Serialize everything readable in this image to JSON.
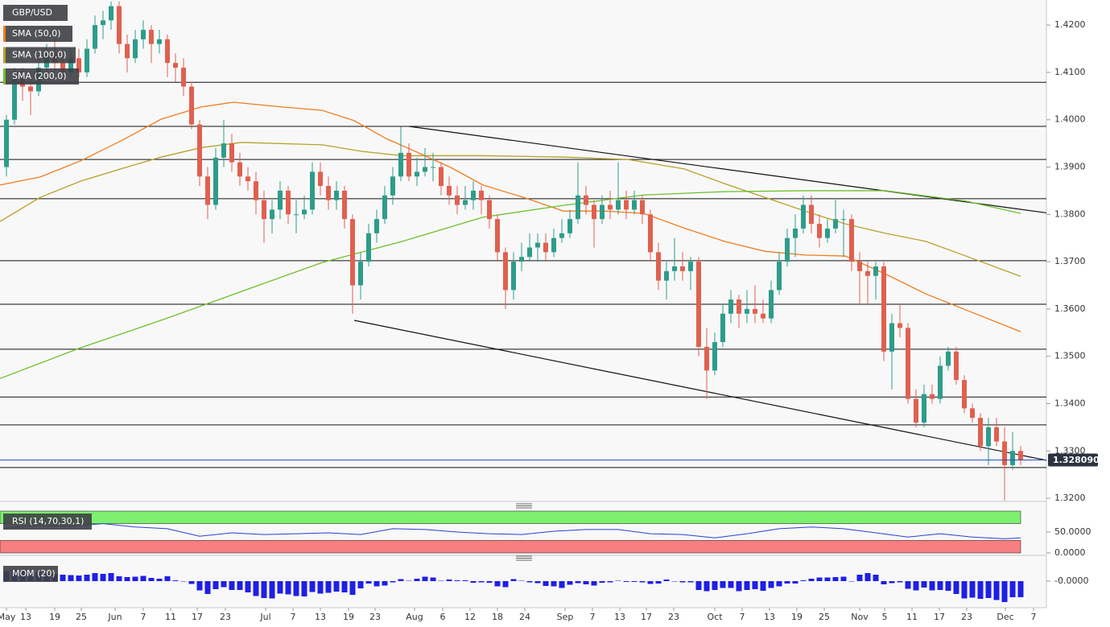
{
  "chart_data": {
    "type": "candlestick",
    "title": "GBP/USD",
    "up_color": "#2e9c8a",
    "down_color": "#e0604f",
    "xlim": [
      -0.8,
      129.2
    ],
    "xticks": [
      {
        "value": 0,
        "label": "May"
      },
      {
        "value": 2.4,
        "label": "13"
      },
      {
        "value": 6,
        "label": "19"
      },
      {
        "value": 9.3,
        "label": "25"
      },
      {
        "value": 13.5,
        "label": "Jun"
      },
      {
        "value": 17,
        "label": "7"
      },
      {
        "value": 20.4,
        "label": "11"
      },
      {
        "value": 23.7,
        "label": "17"
      },
      {
        "value": 27.2,
        "label": "23"
      },
      {
        "value": 32.2,
        "label": "Jul"
      },
      {
        "value": 35.6,
        "label": "7"
      },
      {
        "value": 39,
        "label": "13"
      },
      {
        "value": 42.5,
        "label": "19"
      },
      {
        "value": 45.8,
        "label": "23"
      },
      {
        "value": 50.7,
        "label": "Aug"
      },
      {
        "value": 54.2,
        "label": "6"
      },
      {
        "value": 57.6,
        "label": "12"
      },
      {
        "value": 61,
        "label": "18"
      },
      {
        "value": 64.4,
        "label": "24"
      },
      {
        "value": 69.4,
        "label": "Sep"
      },
      {
        "value": 72.8,
        "label": "7"
      },
      {
        "value": 76.2,
        "label": "13"
      },
      {
        "value": 79.5,
        "label": "17"
      },
      {
        "value": 82.9,
        "label": "23"
      },
      {
        "value": 88,
        "label": "Oct"
      },
      {
        "value": 91.4,
        "label": "7"
      },
      {
        "value": 94.8,
        "label": "13"
      },
      {
        "value": 98.2,
        "label": "19"
      },
      {
        "value": 101.6,
        "label": "25"
      },
      {
        "value": 106,
        "label": "Nov"
      },
      {
        "value": 109.1,
        "label": "5"
      },
      {
        "value": 112.5,
        "label": "11"
      },
      {
        "value": 115.9,
        "label": "17"
      },
      {
        "value": 119.3,
        "label": "23"
      },
      {
        "value": 124.1,
        "label": "Dec"
      },
      {
        "value": 127.6,
        "label": "7"
      }
    ],
    "ylim": [
      1.3195,
      1.4253
    ],
    "yticks": [
      {
        "value": 1.42,
        "label": "1.4200"
      },
      {
        "value": 1.41,
        "label": "1.4100"
      },
      {
        "value": 1.4,
        "label": "1.4000"
      },
      {
        "value": 1.39,
        "label": "1.3900"
      },
      {
        "value": 1.38,
        "label": "1.3800"
      },
      {
        "value": 1.37,
        "label": "1.3700"
      },
      {
        "value": 1.36,
        "label": "1.3600"
      },
      {
        "value": 1.35,
        "label": "1.3500"
      },
      {
        "value": 1.34,
        "label": "1.3400"
      },
      {
        "value": 1.33,
        "label": "1.3300"
      },
      {
        "value": 1.32,
        "label": "1.3200"
      }
    ],
    "ohlc": [
      [
        1.39,
        1.401,
        1.388,
        1.4
      ],
      [
        1.4,
        1.411,
        1.399,
        1.409
      ],
      [
        1.409,
        1.411,
        1.404,
        1.407
      ],
      [
        1.407,
        1.409,
        1.401,
        1.406
      ],
      [
        1.406,
        1.413,
        1.405,
        1.411
      ],
      [
        1.411,
        1.416,
        1.41,
        1.414
      ],
      [
        1.414,
        1.417,
        1.41,
        1.412
      ],
      [
        1.412,
        1.414,
        1.408,
        1.41
      ],
      [
        1.41,
        1.415,
        1.409,
        1.413
      ],
      [
        1.413,
        1.415,
        1.409,
        1.41
      ],
      [
        1.41,
        1.417,
        1.409,
        1.415
      ],
      [
        1.415,
        1.422,
        1.414,
        1.42
      ],
      [
        1.42,
        1.423,
        1.417,
        1.421
      ],
      [
        1.421,
        1.425,
        1.419,
        1.424
      ],
      [
        1.424,
        1.425,
        1.414,
        1.416
      ],
      [
        1.416,
        1.418,
        1.41,
        1.413
      ],
      [
        1.413,
        1.419,
        1.412,
        1.417
      ],
      [
        1.417,
        1.421,
        1.415,
        1.419
      ],
      [
        1.419,
        1.42,
        1.412,
        1.416
      ],
      [
        1.416,
        1.419,
        1.414,
        1.417
      ],
      [
        1.417,
        1.418,
        1.409,
        1.412
      ],
      [
        1.412,
        1.414,
        1.408,
        1.411
      ],
      [
        1.411,
        1.413,
        1.405,
        1.407
      ],
      [
        1.407,
        1.408,
        1.398,
        1.399
      ],
      [
        1.399,
        1.4,
        1.386,
        1.388
      ],
      [
        1.388,
        1.39,
        1.379,
        1.382
      ],
      [
        1.382,
        1.394,
        1.381,
        1.392
      ],
      [
        1.392,
        1.4,
        1.39,
        1.395
      ],
      [
        1.395,
        1.397,
        1.389,
        1.391
      ],
      [
        1.391,
        1.393,
        1.386,
        1.388
      ],
      [
        1.388,
        1.39,
        1.385,
        1.387
      ],
      [
        1.387,
        1.389,
        1.38,
        1.383
      ],
      [
        1.383,
        1.385,
        1.374,
        1.379
      ],
      [
        1.379,
        1.383,
        1.376,
        1.381
      ],
      [
        1.381,
        1.387,
        1.379,
        1.385
      ],
      [
        1.385,
        1.386,
        1.378,
        1.38
      ],
      [
        1.38,
        1.383,
        1.376,
        1.38
      ],
      [
        1.38,
        1.384,
        1.379,
        1.381
      ],
      [
        1.381,
        1.391,
        1.38,
        1.389
      ],
      [
        1.389,
        1.391,
        1.384,
        1.386
      ],
      [
        1.386,
        1.388,
        1.381,
        1.383
      ],
      [
        1.383,
        1.387,
        1.381,
        1.385
      ],
      [
        1.385,
        1.386,
        1.377,
        1.379
      ],
      [
        1.379,
        1.38,
        1.359,
        1.365
      ],
      [
        1.365,
        1.372,
        1.362,
        1.37
      ],
      [
        1.37,
        1.378,
        1.369,
        1.376
      ],
      [
        1.376,
        1.381,
        1.374,
        1.379
      ],
      [
        1.379,
        1.386,
        1.378,
        1.384
      ],
      [
        1.384,
        1.39,
        1.382,
        1.388
      ],
      [
        1.388,
        1.3985,
        1.387,
        1.393
      ],
      [
        1.393,
        1.395,
        1.387,
        1.388
      ],
      [
        1.388,
        1.392,
        1.386,
        1.389
      ],
      [
        1.389,
        1.394,
        1.388,
        1.39
      ],
      [
        1.39,
        1.393,
        1.387,
        1.39
      ],
      [
        1.39,
        1.391,
        1.384,
        1.386
      ],
      [
        1.386,
        1.388,
        1.382,
        1.384
      ],
      [
        1.384,
        1.386,
        1.38,
        1.382
      ],
      [
        1.382,
        1.386,
        1.381,
        1.383
      ],
      [
        1.383,
        1.387,
        1.381,
        1.385
      ],
      [
        1.385,
        1.386,
        1.38,
        1.383
      ],
      [
        1.383,
        1.384,
        1.377,
        1.379
      ],
      [
        1.379,
        1.38,
        1.37,
        1.372
      ],
      [
        1.372,
        1.373,
        1.36,
        1.364
      ],
      [
        1.364,
        1.372,
        1.362,
        1.37
      ],
      [
        1.37,
        1.374,
        1.368,
        1.371
      ],
      [
        1.371,
        1.376,
        1.37,
        1.373
      ],
      [
        1.373,
        1.376,
        1.37,
        1.374
      ],
      [
        1.374,
        1.376,
        1.37,
        1.372
      ],
      [
        1.372,
        1.377,
        1.371,
        1.375
      ],
      [
        1.375,
        1.379,
        1.374,
        1.376
      ],
      [
        1.376,
        1.381,
        1.375,
        1.379
      ],
      [
        1.379,
        1.391,
        1.378,
        1.384
      ],
      [
        1.384,
        1.386,
        1.38,
        1.382
      ],
      [
        1.382,
        1.383,
        1.373,
        1.379
      ],
      [
        1.379,
        1.384,
        1.378,
        1.382
      ],
      [
        1.382,
        1.385,
        1.379,
        1.381
      ],
      [
        1.381,
        1.391,
        1.38,
        1.383
      ],
      [
        1.383,
        1.385,
        1.379,
        1.381
      ],
      [
        1.381,
        1.385,
        1.38,
        1.383
      ],
      [
        1.383,
        1.384,
        1.378,
        1.38
      ],
      [
        1.38,
        1.381,
        1.37,
        1.372
      ],
      [
        1.372,
        1.374,
        1.364,
        1.366
      ],
      [
        1.366,
        1.37,
        1.362,
        1.368
      ],
      [
        1.368,
        1.375,
        1.366,
        1.369
      ],
      [
        1.369,
        1.372,
        1.366,
        1.368
      ],
      [
        1.368,
        1.371,
        1.364,
        1.37
      ],
      [
        1.37,
        1.371,
        1.35,
        1.352
      ],
      [
        1.352,
        1.356,
        1.341,
        1.347
      ],
      [
        1.347,
        1.355,
        1.346,
        1.353
      ],
      [
        1.353,
        1.361,
        1.352,
        1.359
      ],
      [
        1.359,
        1.364,
        1.357,
        1.362
      ],
      [
        1.362,
        1.363,
        1.356,
        1.359
      ],
      [
        1.359,
        1.364,
        1.357,
        1.36
      ],
      [
        1.36,
        1.365,
        1.357,
        1.359
      ],
      [
        1.359,
        1.362,
        1.357,
        1.358
      ],
      [
        1.358,
        1.366,
        1.357,
        1.364
      ],
      [
        1.364,
        1.372,
        1.363,
        1.37
      ],
      [
        1.37,
        1.377,
        1.369,
        1.375
      ],
      [
        1.375,
        1.38,
        1.371,
        1.377
      ],
      [
        1.377,
        1.384,
        1.376,
        1.382
      ],
      [
        1.382,
        1.384,
        1.376,
        1.378
      ],
      [
        1.378,
        1.38,
        1.373,
        1.375
      ],
      [
        1.375,
        1.379,
        1.374,
        1.377
      ],
      [
        1.377,
        1.383,
        1.376,
        1.379
      ],
      [
        1.379,
        1.381,
        1.371,
        1.379
      ],
      [
        1.379,
        1.38,
        1.368,
        1.37
      ],
      [
        1.37,
        1.372,
        1.361,
        1.368
      ],
      [
        1.368,
        1.37,
        1.361,
        1.367
      ],
      [
        1.367,
        1.37,
        1.362,
        1.369
      ],
      [
        1.369,
        1.37,
        1.349,
        1.351
      ],
      [
        1.351,
        1.359,
        1.343,
        1.357
      ],
      [
        1.357,
        1.361,
        1.354,
        1.356
      ],
      [
        1.356,
        1.357,
        1.34,
        1.341
      ],
      [
        1.341,
        1.343,
        1.335,
        1.336
      ],
      [
        1.336,
        1.344,
        1.335,
        1.342
      ],
      [
        1.342,
        1.344,
        1.34,
        1.341
      ],
      [
        1.341,
        1.35,
        1.34,
        1.348
      ],
      [
        1.348,
        1.352,
        1.347,
        1.351
      ],
      [
        1.351,
        1.352,
        1.344,
        1.345
      ],
      [
        1.345,
        1.346,
        1.338,
        1.339
      ],
      [
        1.339,
        1.34,
        1.336,
        1.337
      ],
      [
        1.337,
        1.338,
        1.33,
        1.331
      ],
      [
        1.331,
        1.337,
        1.327,
        1.335
      ],
      [
        1.335,
        1.337,
        1.331,
        1.332
      ],
      [
        1.332,
        1.335,
        1.3195,
        1.327
      ],
      [
        1.327,
        1.334,
        1.326,
        1.33
      ],
      [
        1.33,
        1.331,
        1.327,
        1.32809
      ]
    ],
    "series": [
      {
        "name": "SMA (50,0)",
        "color": "#f07d1f",
        "x": [
          -0.8,
          4.2,
          9.2,
          14.2,
          19.2,
          24.2,
          28.2,
          34.2,
          39.2,
          43.2,
          47.2,
          51.2,
          55.2,
          59.2,
          64.2,
          69.2,
          74.2,
          79.2,
          84.2,
          89.2,
          94.2,
          99.2,
          104.2,
          109.2,
          114.2,
          119.2,
          126
        ],
        "values": [
          1.3862,
          1.3879,
          1.3913,
          1.3955,
          1.4001,
          1.4027,
          1.4037,
          1.4027,
          1.402,
          1.3998,
          1.396,
          1.393,
          1.3899,
          1.3862,
          1.3836,
          1.3807,
          1.3807,
          1.3802,
          1.3771,
          1.3743,
          1.3722,
          1.3714,
          1.3712,
          1.3674,
          1.3632,
          1.3598,
          1.3552
        ]
      },
      {
        "name": "SMA (100,0)",
        "color": "#b5a22a",
        "x": [
          -0.8,
          4.2,
          9.2,
          14.2,
          19.2,
          24.2,
          29.2,
          39.2,
          44.2,
          49.2,
          59.2,
          69.2,
          77.2,
          84.2,
          89.2,
          94.2,
          99.2,
          104.2,
          109.2,
          114.2,
          119.2,
          126
        ],
        "values": [
          1.3785,
          1.3836,
          1.387,
          1.3896,
          1.3921,
          1.3941,
          1.3952,
          1.3947,
          1.3933,
          1.3924,
          1.3924,
          1.3921,
          1.3916,
          1.3896,
          1.3865,
          1.3836,
          1.3807,
          1.378,
          1.376,
          1.3743,
          1.3712,
          1.3669
        ]
      },
      {
        "name": "SMA (200,0)",
        "color": "#6ec02c",
        "x": [
          -0.8,
          9.2,
          19.2,
          29.2,
          39.2,
          49.2,
          59.2,
          69.2,
          79.2,
          89.2,
          99.2,
          109.2,
          119.2,
          126
        ],
        "values": [
          1.3453,
          1.3518,
          1.3576,
          1.3637,
          1.3698,
          1.3743,
          1.3794,
          1.3819,
          1.3841,
          1.3848,
          1.385,
          1.385,
          1.3828,
          1.3802
        ]
      }
    ],
    "hlines": [
      1.4079,
      1.3986,
      1.3916,
      1.3833,
      1.3702,
      1.361,
      1.3515,
      1.3414,
      1.3355,
      1.3265
    ],
    "trendlines": [
      {
        "x": [
          50,
          137.1
        ],
        "values": [
          1.3986,
          1.3785
        ]
      },
      {
        "x": [
          43.2,
          137.1
        ],
        "values": [
          1.3576,
          1.3253
        ]
      }
    ],
    "last_price": {
      "value": 1.32809,
      "label": "1.328090"
    },
    "last_price_color": "#2d4fb3",
    "rsi": {
      "name": "RSI (14,70,30,1)",
      "color": "#2a3fd0",
      "upper": 70,
      "lower": 30,
      "ylim": [
        0,
        100
      ],
      "yticks": [
        {
          "value": 50,
          "label": "50.0000"
        },
        {
          "value": 0,
          "label": "0.0000"
        }
      ],
      "x": [
        0,
        4,
        8,
        12,
        16,
        20,
        24,
        28,
        32,
        36,
        40,
        44,
        48,
        52,
        56,
        60,
        64,
        68,
        72,
        76,
        80,
        84,
        88,
        92,
        96,
        100,
        104,
        108,
        112,
        116,
        120,
        124,
        126
      ],
      "values": [
        60,
        66,
        64,
        70,
        62,
        58,
        40,
        48,
        44,
        46,
        48,
        44,
        58,
        56,
        50,
        46,
        44,
        52,
        56,
        56,
        46,
        44,
        36,
        46,
        58,
        62,
        58,
        48,
        38,
        46,
        38,
        34,
        36
      ]
    },
    "mom": {
      "name": "MOM (20)",
      "color": "#1f1fe6",
      "ylim": [
        -0.06,
        0.05
      ],
      "yticks": [
        {
          "value": 0,
          "label": "-0.0000"
        }
      ],
      "values": [
        0.025,
        0.028,
        0.026,
        0.024,
        0.022,
        0.02,
        0.018,
        0.016,
        0.015,
        0.014,
        0.016,
        0.02,
        0.018,
        0.02,
        0.012,
        0.01,
        0.011,
        0.013,
        0.008,
        0.006,
        0.012,
        0.002,
        0,
        -0.007,
        -0.023,
        -0.032,
        -0.02,
        -0.015,
        -0.022,
        -0.022,
        -0.028,
        -0.037,
        -0.042,
        -0.043,
        -0.031,
        -0.033,
        -0.037,
        -0.038,
        -0.027,
        -0.031,
        -0.029,
        -0.026,
        -0.028,
        -0.034,
        -0.018,
        -0.006,
        -0.013,
        -0.011,
        -0.003,
        0.005,
        0.001,
        0.006,
        0.011,
        0.009,
        0.001,
        0.004,
        0.002,
        0.002,
        -0.004,
        -0.003,
        -0.004,
        -0.013,
        -0.015,
        0.005,
        0.001,
        -0.003,
        -0.005,
        -0.012,
        -0.013,
        -0.017,
        -0.009,
        -0.005,
        -0.008,
        -0.011,
        -0.004,
        -0.003,
        0.001,
        -0.002,
        -0.002,
        -0.003,
        -0.007,
        -0.006,
        0.004,
        -0.001,
        -0.003,
        -0.003,
        -0.022,
        -0.025,
        -0.022,
        -0.017,
        -0.017,
        -0.025,
        -0.022,
        -0.02,
        -0.024,
        -0.017,
        -0.013,
        -0.006,
        -0.006,
        0.002,
        0.006,
        0.009,
        0.009,
        0.01,
        0.011,
        0,
        0.016,
        0.02,
        0.016,
        -0.008,
        -0.005,
        -0.003,
        -0.019,
        -0.023,
        -0.016,
        -0.023,
        -0.022,
        -0.024,
        -0.032,
        -0.043,
        -0.041,
        -0.044,
        -0.042,
        -0.047,
        -0.052,
        -0.04,
        -0.0399
      ]
    }
  }
}
